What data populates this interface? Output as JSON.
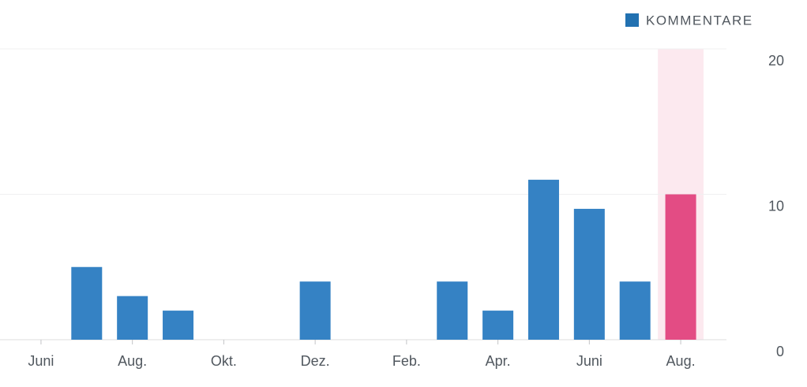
{
  "chart_data": {
    "type": "bar",
    "legend": "KOMMENTARE",
    "categories": [
      "Juni",
      null,
      "Aug.",
      null,
      "Okt.",
      null,
      "Dez.",
      null,
      "Feb.",
      null,
      "Apr.",
      null,
      "Juni",
      null,
      "Aug."
    ],
    "values": [
      0,
      5,
      3,
      2,
      0,
      0,
      4,
      0,
      0,
      4,
      2,
      11,
      9,
      4,
      10
    ],
    "color": "#3582c4",
    "colors": [
      "#3582c4",
      "#3582c4",
      "#3582c4",
      "#3582c4",
      "#3582c4",
      "#3582c4",
      "#3582c4",
      "#3582c4",
      "#3582c4",
      "#3582c4",
      "#3582c4",
      "#3582c4",
      "#3582c4",
      "#3582c4",
      "#e34c84"
    ],
    "highlight_band_color": "#fce9ef",
    "ylim": [
      0,
      20
    ],
    "yticks": [
      0,
      10,
      20
    ],
    "grid": true,
    "legend_position": "top-right"
  }
}
